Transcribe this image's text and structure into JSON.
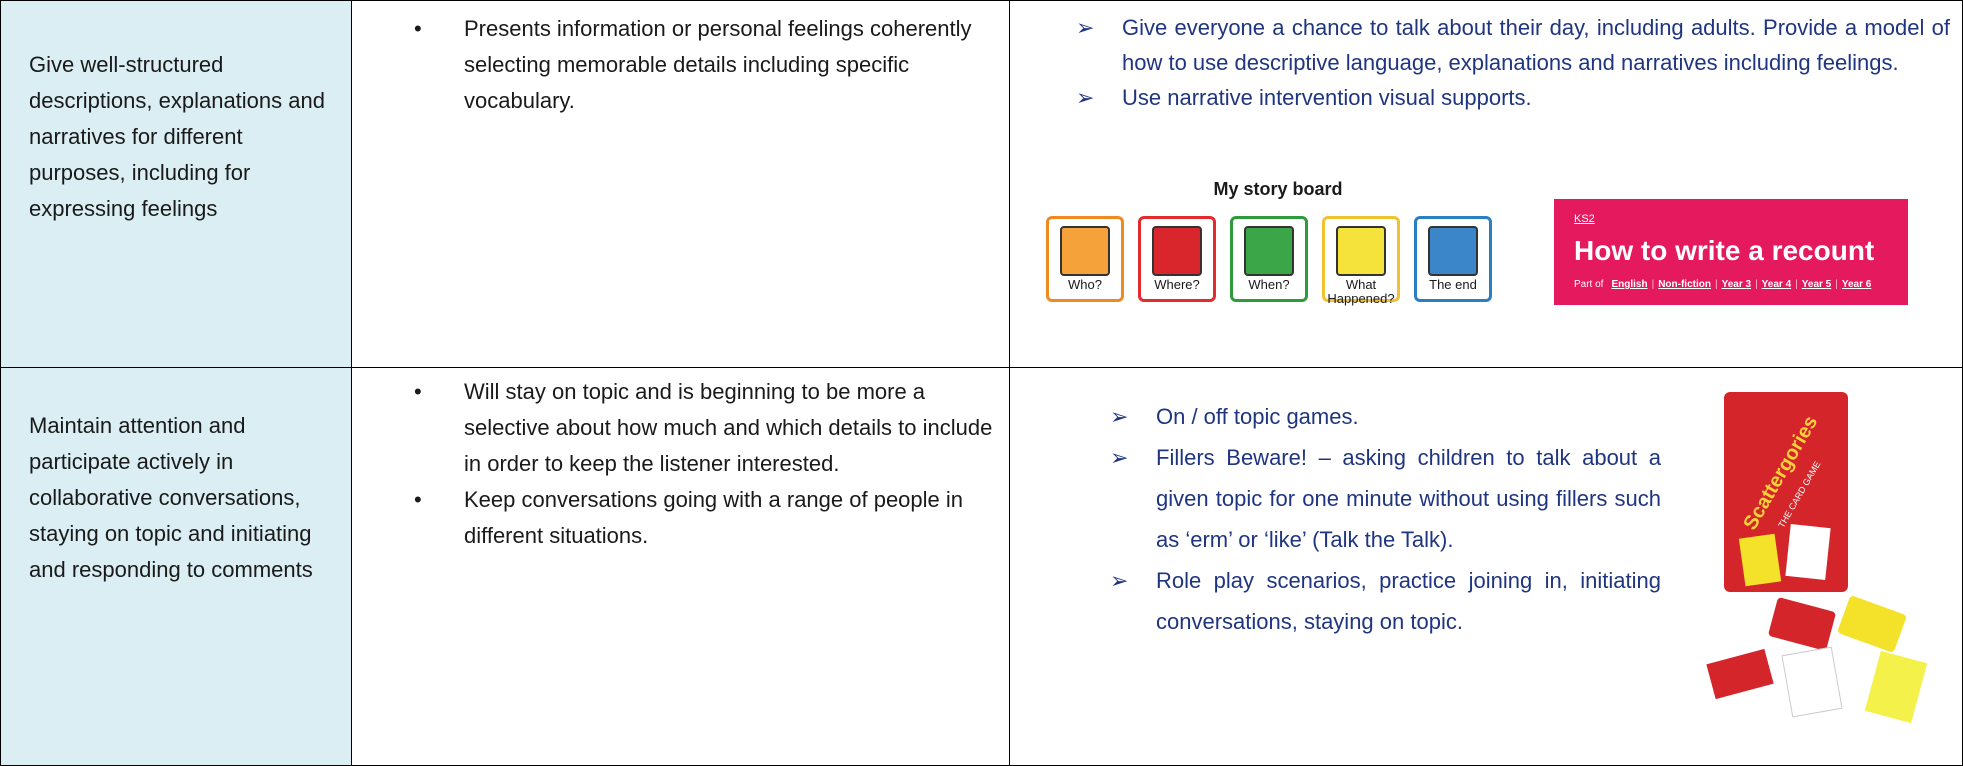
{
  "table": {
    "rows": [
      {
        "skill": "Give well-structured descriptions, explanations and narratives for different purposes, including for expressing feelings",
        "outcomes": [
          "Presents information or personal feelings coherently selecting memorable details including specific vocabulary."
        ],
        "strategies": [
          "Give everyone a chance to talk about their day, including adults. Provide a model of how to use descriptive language, explanations and narratives including feelings.",
          "Use narrative intervention visual supports."
        ],
        "story_board": {
          "title": "My story board",
          "cards": [
            "Who?",
            "Where?",
            "When?",
            "What Happened?",
            "The end"
          ]
        },
        "banner": {
          "tag": "KS2",
          "title": "How to write a recount",
          "part_of": "Part of",
          "links": [
            "English",
            "Non-fiction",
            "Year 3",
            "Year 4",
            "Year 5",
            "Year 6"
          ]
        }
      },
      {
        "skill": "Maintain attention and participate actively in collaborative conversations, staying on topic and initiating and responding to comments",
        "outcomes": [
          "Will stay on topic and is beginning to be more a selective about how much and which details to include in order to keep the listener interested.",
          "Keep conversations going with a range of people in different situations."
        ],
        "strategies": [
          "On / off topic games.",
          "Fillers Beware! – asking children to talk about a given topic for one minute without using fillers such as ‘erm’ or ‘like’ (Talk the Talk).",
          "Role play scenarios, practice joining in, initiating conversations, staying on topic."
        ],
        "game_box": {
          "title": "Scattergories",
          "subtitle": "THE CARD GAME"
        }
      }
    ]
  }
}
